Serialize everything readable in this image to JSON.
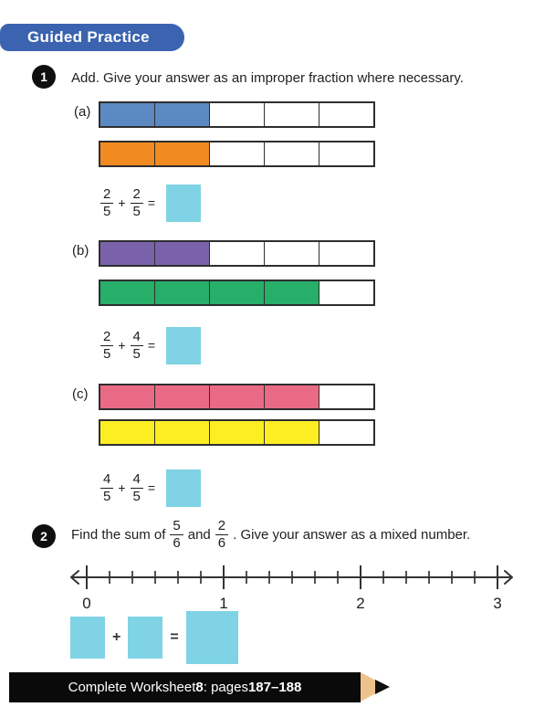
{
  "colors": {
    "banner": "#3b63af",
    "answer_box": "#7fd3e4",
    "bar_border": "#2e2e2e",
    "footer_bg": "#0a0a0a",
    "pencil_wood": "#eec28c",
    "text": "#1f1f1f"
  },
  "header": {
    "label": "Guided Practice"
  },
  "q1": {
    "badge": "1",
    "prompt": "Add. Give your answer as an improper fraction where necessary.",
    "parts": [
      {
        "label": "(a)",
        "bars": [
          {
            "segments": 5,
            "filled": 2,
            "color": "#5c89c1"
          },
          {
            "segments": 5,
            "filled": 2,
            "color": "#f18a21"
          }
        ],
        "equation": {
          "f1": {
            "num": "2",
            "den": "5"
          },
          "op": "+",
          "f2": {
            "num": "2",
            "den": "5"
          },
          "eq": "="
        }
      },
      {
        "label": "(b)",
        "bars": [
          {
            "segments": 5,
            "filled": 2,
            "color": "#7a62ab"
          },
          {
            "segments": 5,
            "filled": 4,
            "color": "#27ae68"
          }
        ],
        "equation": {
          "f1": {
            "num": "2",
            "den": "5"
          },
          "op": "+",
          "f2": {
            "num": "4",
            "den": "5"
          },
          "eq": "="
        }
      },
      {
        "label": "(c)",
        "bars": [
          {
            "segments": 5,
            "filled": 4,
            "color": "#e96a85"
          },
          {
            "segments": 5,
            "filled": 4,
            "color": "#fdee24"
          }
        ],
        "equation": {
          "f1": {
            "num": "4",
            "den": "5"
          },
          "op": "+",
          "f2": {
            "num": "4",
            "den": "5"
          },
          "eq": "="
        }
      }
    ]
  },
  "q2": {
    "badge": "2",
    "text_before": "Find the sum of",
    "frac1": {
      "num": "5",
      "den": "6"
    },
    "text_middle": "and",
    "frac2": {
      "num": "2",
      "den": "6"
    },
    "text_after": ". Give your answer as a mixed number.",
    "number_line": {
      "start": 0,
      "end": 3,
      "divisions_per_unit": 6,
      "labels": [
        "0",
        "1",
        "2",
        "3"
      ]
    },
    "sum_equation": {
      "plus": "+",
      "equals": "="
    }
  },
  "footer": {
    "prefix": "Complete Worksheet ",
    "worksheet_number": "8",
    "middle": ": pages ",
    "pages": "187–188"
  }
}
